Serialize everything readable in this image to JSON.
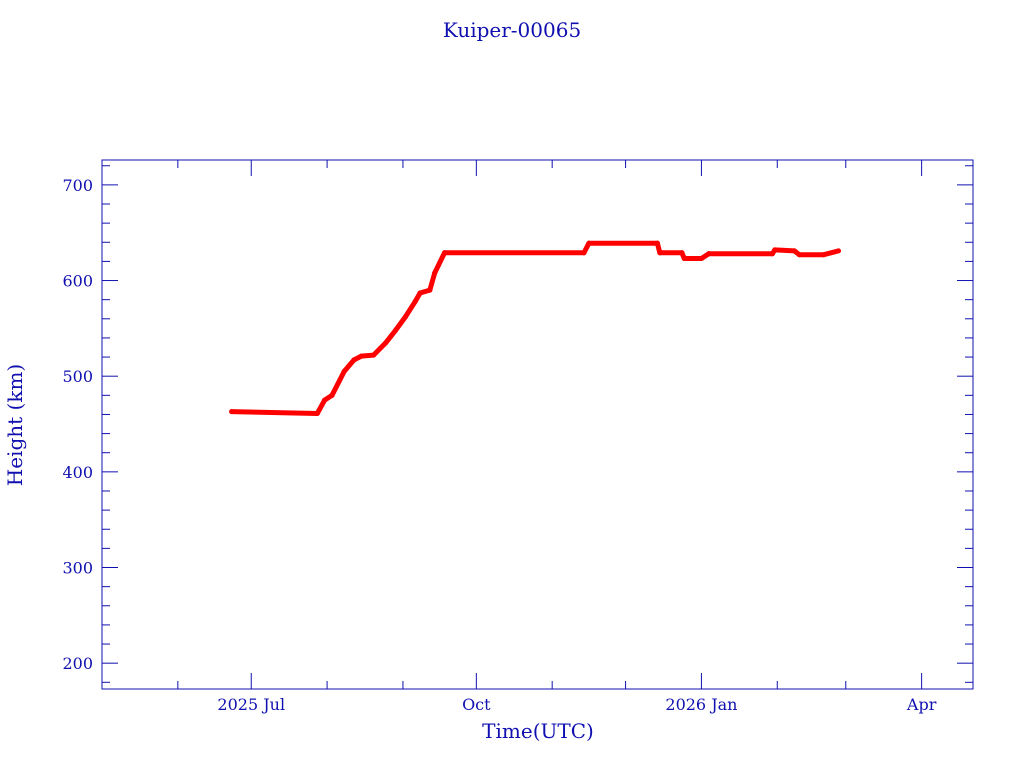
{
  "chart_data": {
    "type": "line",
    "title": "Kuiper-00065",
    "xlabel": "Time(UTC)",
    "ylabel": "Height (km)",
    "xlim": [
      "2025-05-01",
      "2026-04-22"
    ],
    "ylim": [
      173,
      726
    ],
    "x_ticks": [
      {
        "date": "2025-07-01",
        "label": "2025 Jul"
      },
      {
        "date": "2025-10-01",
        "label": "Oct"
      },
      {
        "date": "2026-01-01",
        "label": "2026 Jan"
      },
      {
        "date": "2026-04-01",
        "label": "Apr"
      }
    ],
    "x_minor_ticks": [
      "2025-06-01",
      "2025-08-01",
      "2025-09-01",
      "2025-11-01",
      "2025-12-01",
      "2026-02-01",
      "2026-03-01"
    ],
    "y_ticks": [
      200,
      300,
      400,
      500,
      600,
      700
    ],
    "y_minor_step": 20,
    "grid": false,
    "axis_color": "#1010b0",
    "series": [
      {
        "color": "#ff0000",
        "x": [
          "2025-06-23",
          "2025-07-28",
          "2025-07-31",
          "2025-08-03",
          "2025-08-08",
          "2025-08-12",
          "2025-08-15",
          "2025-08-20",
          "2025-08-25",
          "2025-08-29",
          "2025-09-02",
          "2025-09-06",
          "2025-09-08",
          "2025-09-12",
          "2025-09-14",
          "2025-09-18",
          "2025-11-14",
          "2025-11-16",
          "2025-12-14",
          "2025-12-15",
          "2025-12-24",
          "2025-12-25",
          "2026-01-01",
          "2026-01-04",
          "2026-01-30",
          "2026-01-31",
          "2026-02-08",
          "2026-02-10",
          "2026-02-20",
          "2026-02-26"
        ],
        "y": [
          463,
          461,
          475,
          480,
          505,
          517,
          521,
          522,
          535,
          548,
          562,
          578,
          587,
          590,
          608,
          629,
          629,
          639,
          639,
          629,
          629,
          623,
          623,
          628,
          628,
          632,
          631,
          627,
          627,
          631
        ]
      }
    ]
  }
}
